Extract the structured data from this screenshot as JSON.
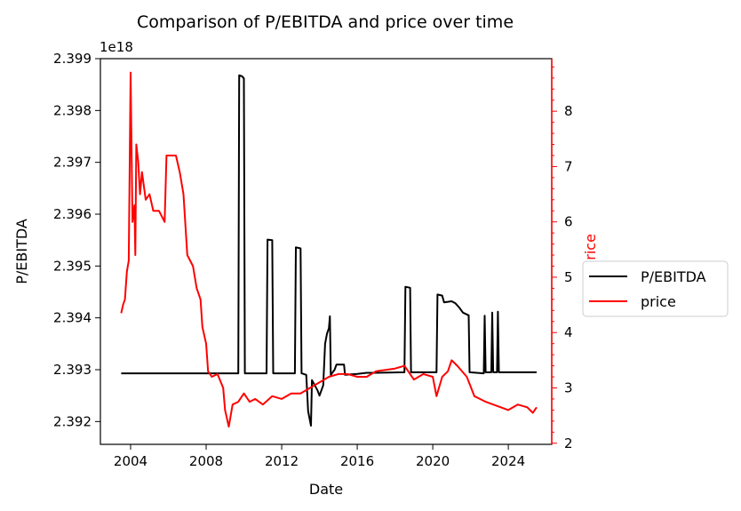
{
  "chart_data": {
    "type": "line",
    "title": "Comparison of P/EBITDA and price over time",
    "xlabel": "Date",
    "ylabel_left": "P/EBITDA",
    "ylabel_right": "price",
    "left_offset_text": "1e18",
    "x_ticks": [
      "2004",
      "2008",
      "2012",
      "2016",
      "2020",
      "2024"
    ],
    "y_left_ticks": [
      "2.392",
      "2.393",
      "2.394",
      "2.395",
      "2.396",
      "2.397",
      "2.398",
      "2.399"
    ],
    "y_right_ticks": [
      "2",
      "3",
      "4",
      "5",
      "6",
      "7",
      "8"
    ],
    "xlim": [
      2002.4,
      2026.3
    ],
    "ylim_left": [
      2.39156,
      2.399
    ],
    "ylim_right": [
      1.98,
      8.95
    ],
    "legend_position": "right",
    "colors": {
      "pebitda": "#000000",
      "price": "#ff0000",
      "right_axis": "#ff0000"
    },
    "series": [
      {
        "name": "P/EBITDA",
        "axis": "left",
        "color": "#000000",
        "points": [
          [
            2003.5,
            2.39293
          ],
          [
            2009.7,
            2.39293
          ],
          [
            2009.75,
            2.39868
          ],
          [
            2009.9,
            2.39866
          ],
          [
            2010.0,
            2.39862
          ],
          [
            2010.05,
            2.39293
          ],
          [
            2011.2,
            2.39293
          ],
          [
            2011.25,
            2.39551
          ],
          [
            2011.5,
            2.3955
          ],
          [
            2011.55,
            2.39293
          ],
          [
            2012.7,
            2.39293
          ],
          [
            2012.75,
            2.39536
          ],
          [
            2013.0,
            2.39534
          ],
          [
            2013.05,
            2.39293
          ],
          [
            2013.3,
            2.3929
          ],
          [
            2013.4,
            2.3922
          ],
          [
            2013.55,
            2.39192
          ],
          [
            2013.6,
            2.3928
          ],
          [
            2013.9,
            2.3926
          ],
          [
            2014.0,
            2.3925
          ],
          [
            2014.2,
            2.3927
          ],
          [
            2014.3,
            2.3935
          ],
          [
            2014.4,
            2.3937
          ],
          [
            2014.5,
            2.3938
          ],
          [
            2014.55,
            2.39403
          ],
          [
            2014.6,
            2.3929
          ],
          [
            2014.8,
            2.393
          ],
          [
            2014.9,
            2.3931
          ],
          [
            2015.3,
            2.3931
          ],
          [
            2015.35,
            2.3929
          ],
          [
            2016.0,
            2.39292
          ],
          [
            2016.5,
            2.39294
          ],
          [
            2017.0,
            2.39294
          ],
          [
            2018.5,
            2.39295
          ],
          [
            2018.55,
            2.3946
          ],
          [
            2018.8,
            2.39458
          ],
          [
            2018.85,
            2.39295
          ],
          [
            2020.2,
            2.39295
          ],
          [
            2020.25,
            2.39445
          ],
          [
            2020.5,
            2.39443
          ],
          [
            2020.6,
            2.3943
          ],
          [
            2021.0,
            2.39432
          ],
          [
            2021.2,
            2.39428
          ],
          [
            2021.4,
            2.3942
          ],
          [
            2021.6,
            2.3941
          ],
          [
            2021.9,
            2.39405
          ],
          [
            2021.95,
            2.39295
          ],
          [
            2022.7,
            2.39293
          ],
          [
            2022.75,
            2.39404
          ],
          [
            2022.8,
            2.39295
          ],
          [
            2023.1,
            2.39295
          ],
          [
            2023.15,
            2.3941
          ],
          [
            2023.2,
            2.39295
          ],
          [
            2023.4,
            2.39295
          ],
          [
            2023.45,
            2.39412
          ],
          [
            2023.5,
            2.39295
          ],
          [
            2025.5,
            2.39295
          ]
        ]
      },
      {
        "name": "price",
        "axis": "right",
        "color": "#ff0000",
        "points": [
          [
            2003.5,
            4.35
          ],
          [
            2003.6,
            4.5
          ],
          [
            2003.7,
            4.6
          ],
          [
            2003.8,
            5.1
          ],
          [
            2003.9,
            5.3
          ],
          [
            2004.0,
            8.7
          ],
          [
            2004.1,
            6.0
          ],
          [
            2004.2,
            6.3
          ],
          [
            2004.25,
            5.4
          ],
          [
            2004.3,
            7.4
          ],
          [
            2004.4,
            7.1
          ],
          [
            2004.5,
            6.5
          ],
          [
            2004.6,
            6.9
          ],
          [
            2004.8,
            6.4
          ],
          [
            2005.0,
            6.5
          ],
          [
            2005.2,
            6.2
          ],
          [
            2005.5,
            6.2
          ],
          [
            2005.8,
            6.0
          ],
          [
            2005.9,
            7.2
          ],
          [
            2006.2,
            7.2
          ],
          [
            2006.4,
            7.2
          ],
          [
            2006.6,
            6.9
          ],
          [
            2006.8,
            6.5
          ],
          [
            2007.0,
            5.4
          ],
          [
            2007.3,
            5.2
          ],
          [
            2007.5,
            4.8
          ],
          [
            2007.7,
            4.6
          ],
          [
            2007.8,
            4.1
          ],
          [
            2008.0,
            3.8
          ],
          [
            2008.1,
            3.3
          ],
          [
            2008.3,
            3.2
          ],
          [
            2008.6,
            3.25
          ],
          [
            2008.9,
            3.0
          ],
          [
            2009.0,
            2.6
          ],
          [
            2009.2,
            2.3
          ],
          [
            2009.4,
            2.7
          ],
          [
            2009.7,
            2.75
          ],
          [
            2010.0,
            2.9
          ],
          [
            2010.3,
            2.75
          ],
          [
            2010.6,
            2.8
          ],
          [
            2011.0,
            2.7
          ],
          [
            2011.5,
            2.85
          ],
          [
            2012.0,
            2.8
          ],
          [
            2012.5,
            2.9
          ],
          [
            2013.0,
            2.9
          ],
          [
            2013.5,
            3.0
          ],
          [
            2014.0,
            3.1
          ],
          [
            2014.5,
            3.2
          ],
          [
            2015.0,
            3.25
          ],
          [
            2015.5,
            3.25
          ],
          [
            2016.0,
            3.2
          ],
          [
            2016.5,
            3.2
          ],
          [
            2017.0,
            3.3
          ],
          [
            2018.0,
            3.35
          ],
          [
            2018.5,
            3.4
          ],
          [
            2019.0,
            3.15
          ],
          [
            2019.5,
            3.25
          ],
          [
            2020.0,
            3.2
          ],
          [
            2020.2,
            2.85
          ],
          [
            2020.5,
            3.2
          ],
          [
            2020.8,
            3.3
          ],
          [
            2021.0,
            3.5
          ],
          [
            2021.3,
            3.4
          ],
          [
            2021.8,
            3.2
          ],
          [
            2022.2,
            2.85
          ],
          [
            2022.5,
            2.8
          ],
          [
            2022.8,
            2.75
          ],
          [
            2023.2,
            2.7
          ],
          [
            2023.6,
            2.65
          ],
          [
            2024.0,
            2.6
          ],
          [
            2024.5,
            2.7
          ],
          [
            2025.0,
            2.65
          ],
          [
            2025.3,
            2.55
          ],
          [
            2025.5,
            2.65
          ]
        ]
      }
    ]
  }
}
